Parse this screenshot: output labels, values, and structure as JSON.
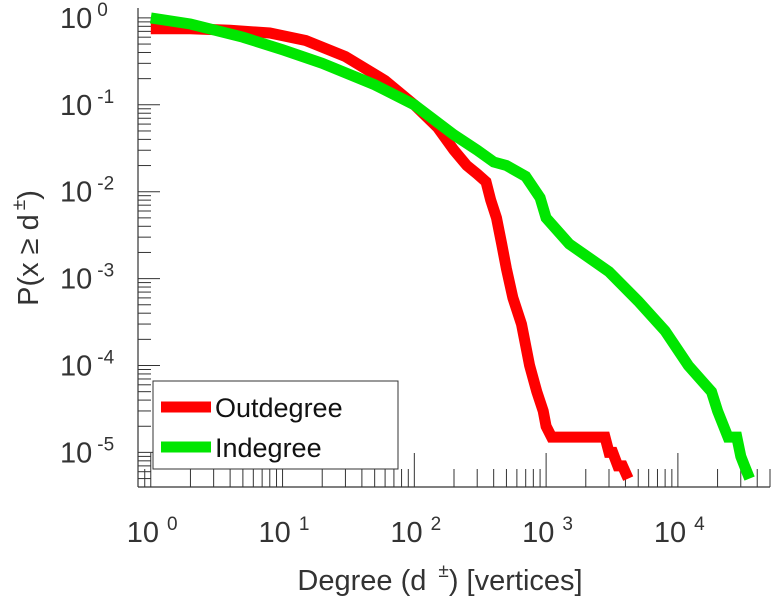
{
  "chart_data": {
    "type": "line",
    "xscale": "log",
    "yscale": "log",
    "xlim": [
      0.8,
      50000
    ],
    "ylim": [
      4e-06,
      1.3
    ],
    "xlabel": {
      "pre": "Degree (d",
      "sup": "±",
      "post": ") [vertices]"
    },
    "ylabel": {
      "pre": "P(x ≥ d",
      "sup": "±",
      "post": ")"
    },
    "xticks": [
      {
        "value": 1,
        "base": "10",
        "exp": "0"
      },
      {
        "value": 10,
        "base": "10",
        "exp": "1"
      },
      {
        "value": 100,
        "base": "10",
        "exp": "2"
      },
      {
        "value": 1000,
        "base": "10",
        "exp": "3"
      },
      {
        "value": 10000,
        "base": "10",
        "exp": "4"
      }
    ],
    "yticks": [
      {
        "value": 1,
        "base": "10",
        "exp": "0"
      },
      {
        "value": 0.1,
        "base": "10",
        "exp": "-1"
      },
      {
        "value": 0.01,
        "base": "10",
        "exp": "-2"
      },
      {
        "value": 0.001,
        "base": "10",
        "exp": "-3"
      },
      {
        "value": 0.0001,
        "base": "10",
        "exp": "-4"
      },
      {
        "value": 1e-05,
        "base": "10",
        "exp": "-5"
      }
    ],
    "grid": false,
    "legend_position": "bottom-left",
    "series": [
      {
        "name": "Outdegree",
        "color": "#ff0000",
        "x": [
          1,
          2,
          4,
          8,
          15,
          30,
          60,
          100,
          150,
          200,
          250,
          300,
          350,
          380,
          420,
          460,
          500,
          560,
          650,
          750,
          850,
          950,
          1000,
          1100,
          1400,
          2000,
          2800,
          3000,
          3200,
          3500,
          3800,
          4200
        ],
        "y": [
          0.75,
          0.75,
          0.72,
          0.67,
          0.55,
          0.36,
          0.19,
          0.1,
          0.055,
          0.03,
          0.02,
          0.016,
          0.013,
          0.008,
          0.005,
          0.0025,
          0.0013,
          0.0006,
          0.0003,
          0.0001,
          5e-05,
          3e-05,
          2e-05,
          1.5e-05,
          1.5e-05,
          1.5e-05,
          1.5e-05,
          1e-05,
          1e-05,
          7e-06,
          7e-06,
          5e-06
        ]
      },
      {
        "name": "Indegree",
        "color": "#00e600",
        "x": [
          1,
          2,
          5,
          10,
          20,
          50,
          100,
          200,
          300,
          400,
          500,
          700,
          900,
          1000,
          1500,
          3000,
          5000,
          8000,
          12000,
          18000,
          20000,
          24000,
          28000,
          30000,
          32000,
          35000
        ],
        "y": [
          1,
          0.85,
          0.6,
          0.43,
          0.3,
          0.17,
          0.1,
          0.045,
          0.03,
          0.022,
          0.02,
          0.015,
          0.0085,
          0.005,
          0.0025,
          0.0012,
          0.00055,
          0.00025,
          0.0001,
          5e-05,
          3e-05,
          1.5e-05,
          1.5e-05,
          9e-06,
          7e-06,
          5e-06
        ]
      }
    ]
  }
}
